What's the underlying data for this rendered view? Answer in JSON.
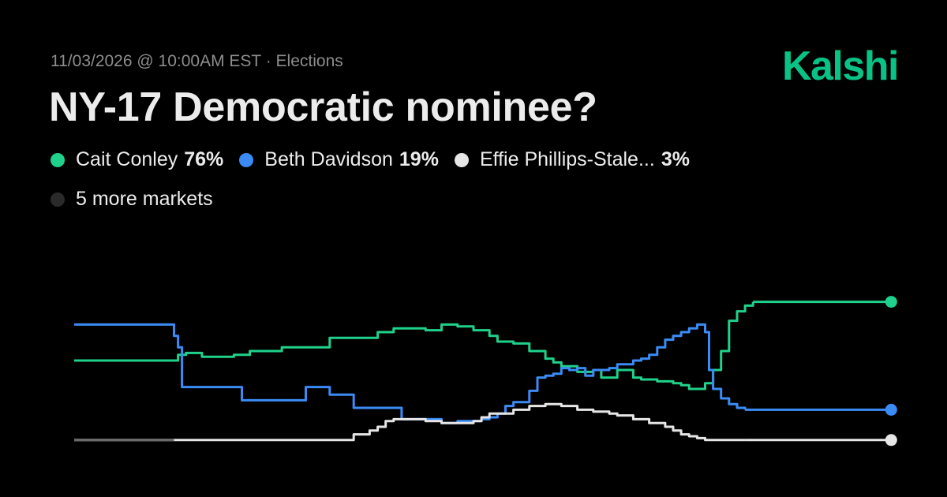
{
  "header": {
    "meta": "11/03/2026 @ 10:00AM EST · Elections",
    "title": "NY-17 Democratic nominee?",
    "brand": "Kalshi",
    "brand_color": "#09C285"
  },
  "legend": {
    "items": [
      {
        "name": "Cait Conley",
        "pct": "76%",
        "color": "#1FD18B"
      },
      {
        "name": "Beth Davidson",
        "pct": "19%",
        "color": "#3B8BF5"
      },
      {
        "name": "Effie Phillips-Stale...",
        "pct": "3%",
        "color": "#E6E6E6"
      }
    ],
    "more": {
      "label": "5 more markets",
      "color": "#2A2A2A"
    }
  },
  "chart_data": {
    "type": "line",
    "ylabel": "",
    "xlabel": "",
    "x_unit": "relative time (0 = start, 100 = now)",
    "ylim": [
      0,
      100
    ],
    "grid": false,
    "series": [
      {
        "name": "Cait Conley",
        "color": "#1FD18B",
        "points": [
          [
            0,
            45
          ],
          [
            5,
            45
          ],
          [
            8,
            45
          ],
          [
            10,
            45
          ],
          [
            11,
            45
          ],
          [
            12.2,
            45
          ],
          [
            13,
            48
          ],
          [
            14,
            49
          ],
          [
            16,
            47
          ],
          [
            18,
            47
          ],
          [
            20,
            48
          ],
          [
            22,
            50
          ],
          [
            24,
            50
          ],
          [
            26,
            52
          ],
          [
            28,
            52
          ],
          [
            30,
            52
          ],
          [
            32,
            57
          ],
          [
            34,
            57
          ],
          [
            36,
            57
          ],
          [
            38,
            60
          ],
          [
            40,
            62
          ],
          [
            42,
            62
          ],
          [
            44,
            61
          ],
          [
            46,
            64
          ],
          [
            48,
            63
          ],
          [
            50,
            61
          ],
          [
            52,
            58
          ],
          [
            53,
            55
          ],
          [
            55,
            54
          ],
          [
            57,
            50
          ],
          [
            59,
            46
          ],
          [
            60,
            44
          ],
          [
            61,
            42
          ],
          [
            63,
            39
          ],
          [
            65,
            40
          ],
          [
            66,
            36
          ],
          [
            68,
            40
          ],
          [
            70,
            36
          ],
          [
            71,
            35
          ],
          [
            73,
            34
          ],
          [
            74,
            34
          ],
          [
            75,
            33
          ],
          [
            76,
            32
          ],
          [
            77,
            30
          ],
          [
            78,
            30
          ],
          [
            79,
            33
          ],
          [
            80,
            40
          ],
          [
            81,
            50
          ],
          [
            82,
            66
          ],
          [
            83,
            71
          ],
          [
            84,
            74
          ],
          [
            85,
            76
          ]
        ]
      },
      {
        "name": "Beth Davidson",
        "color": "#3B8BF5",
        "points": [
          [
            0,
            64
          ],
          [
            8,
            64
          ],
          [
            12,
            64
          ],
          [
            12.5,
            58
          ],
          [
            13,
            52
          ],
          [
            13.5,
            31
          ],
          [
            14,
            31
          ],
          [
            18,
            31
          ],
          [
            20,
            31
          ],
          [
            21,
            24
          ],
          [
            26,
            24
          ],
          [
            27,
            24
          ],
          [
            28,
            24
          ],
          [
            29,
            31
          ],
          [
            31,
            31
          ],
          [
            32,
            27
          ],
          [
            35,
            20
          ],
          [
            38,
            20
          ],
          [
            40,
            20
          ],
          [
            41,
            14
          ],
          [
            42,
            14
          ],
          [
            44,
            14
          ],
          [
            46,
            12
          ],
          [
            48,
            13
          ],
          [
            50,
            13
          ],
          [
            51,
            14
          ],
          [
            52,
            15
          ],
          [
            53,
            17
          ],
          [
            54,
            21
          ],
          [
            55,
            23
          ],
          [
            56,
            23
          ],
          [
            57,
            29
          ],
          [
            58,
            36
          ],
          [
            59,
            37
          ],
          [
            60,
            38
          ],
          [
            61,
            41
          ],
          [
            62,
            40
          ],
          [
            63,
            41
          ],
          [
            64,
            37
          ],
          [
            65,
            40
          ],
          [
            66,
            40
          ],
          [
            67,
            41
          ],
          [
            68,
            43
          ],
          [
            69,
            43
          ],
          [
            70,
            45
          ],
          [
            71,
            46
          ],
          [
            72,
            48
          ],
          [
            73,
            52
          ],
          [
            74,
            56
          ],
          [
            75,
            58
          ],
          [
            76,
            60
          ],
          [
            77,
            62
          ],
          [
            78,
            64
          ],
          [
            79,
            60
          ],
          [
            79.5,
            40
          ],
          [
            80,
            30
          ],
          [
            81,
            25
          ],
          [
            82,
            22
          ],
          [
            83,
            20
          ],
          [
            84,
            19
          ]
        ]
      },
      {
        "name": "Effie Phillips-Stale...",
        "color": "#E6E6E6",
        "points": [
          [
            0,
            3
          ],
          [
            5,
            3
          ],
          [
            10,
            3
          ],
          [
            12.5,
            3
          ],
          [
            15,
            3
          ],
          [
            18,
            3
          ],
          [
            22,
            3
          ],
          [
            25,
            3
          ],
          [
            26,
            3
          ],
          [
            30,
            3
          ],
          [
            35,
            6
          ],
          [
            37,
            8
          ],
          [
            38,
            10
          ],
          [
            39,
            13
          ],
          [
            40,
            14
          ],
          [
            42,
            14
          ],
          [
            44,
            13
          ],
          [
            46,
            12
          ],
          [
            48,
            12
          ],
          [
            50,
            13
          ],
          [
            51,
            15
          ],
          [
            52,
            17
          ],
          [
            53,
            17
          ],
          [
            55,
            19
          ],
          [
            57,
            21
          ],
          [
            59,
            22
          ],
          [
            61,
            21
          ],
          [
            63,
            19
          ],
          [
            65,
            18
          ],
          [
            67,
            17
          ],
          [
            68,
            16
          ],
          [
            70,
            14
          ],
          [
            72,
            12
          ],
          [
            74,
            10
          ],
          [
            75,
            8
          ],
          [
            76,
            6
          ],
          [
            77,
            5
          ],
          [
            78,
            4
          ],
          [
            79,
            3
          ],
          [
            80,
            3
          ],
          [
            81,
            3
          ],
          [
            82,
            3
          ],
          [
            83,
            3
          ],
          [
            84,
            3
          ]
        ]
      },
      {
        "name": "",
        "color": "#6A6A6A",
        "points": [
          [
            0,
            3
          ],
          [
            12.5,
            3
          ]
        ]
      }
    ]
  }
}
